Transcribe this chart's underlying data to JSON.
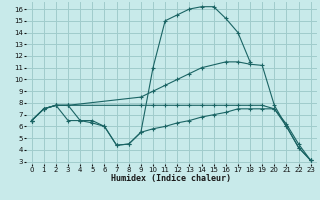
{
  "xlabel": "Humidex (Indice chaleur)",
  "xlim": [
    -0.5,
    23.5
  ],
  "ylim": [
    2.8,
    16.6
  ],
  "xticks": [
    0,
    1,
    2,
    3,
    4,
    5,
    6,
    7,
    8,
    9,
    10,
    11,
    12,
    13,
    14,
    15,
    16,
    17,
    18,
    19,
    20,
    21,
    22,
    23
  ],
  "yticks": [
    3,
    4,
    5,
    6,
    7,
    8,
    9,
    10,
    11,
    12,
    13,
    14,
    15,
    16
  ],
  "bg_color": "#c8eaea",
  "grid_color": "#a0cccc",
  "line_color": "#1a6464",
  "line1_x": [
    0,
    1,
    2,
    3,
    9,
    10,
    11,
    12,
    13,
    14,
    15,
    16,
    17,
    18,
    19,
    20,
    21,
    22,
    23
  ],
  "line1_y": [
    6.5,
    7.5,
    7.8,
    7.8,
    7.8,
    7.8,
    7.8,
    7.8,
    7.8,
    7.8,
    7.8,
    7.8,
    7.8,
    7.8,
    7.8,
    7.5,
    6.2,
    4.5,
    3.1
  ],
  "line2_x": [
    0,
    1,
    2,
    3,
    4,
    5,
    6,
    7,
    8,
    9,
    10,
    11,
    12,
    13,
    14,
    15,
    16,
    17,
    18
  ],
  "line2_y": [
    6.5,
    7.5,
    7.8,
    7.8,
    6.5,
    6.5,
    6.0,
    4.4,
    4.5,
    5.5,
    11.0,
    15.0,
    15.5,
    16.0,
    16.2,
    16.2,
    15.2,
    14.0,
    11.5
  ],
  "line3_x": [
    0,
    1,
    2,
    3,
    9,
    10,
    11,
    12,
    13,
    14,
    16,
    17,
    18,
    19,
    20,
    21,
    22,
    23
  ],
  "line3_y": [
    6.5,
    7.5,
    7.8,
    7.8,
    8.5,
    9.0,
    9.5,
    10.0,
    10.5,
    11.0,
    11.5,
    11.5,
    11.3,
    11.2,
    7.8,
    6.0,
    4.2,
    3.1
  ],
  "line4_x": [
    0,
    1,
    2,
    3,
    4,
    5,
    6,
    7,
    8,
    9,
    10,
    11,
    12,
    13,
    14,
    15,
    16,
    17,
    18,
    19,
    20,
    21,
    22,
    23
  ],
  "line4_y": [
    6.5,
    7.5,
    7.8,
    6.5,
    6.5,
    6.3,
    6.0,
    4.4,
    4.5,
    5.5,
    5.8,
    6.0,
    6.3,
    6.5,
    6.8,
    7.0,
    7.2,
    7.5,
    7.5,
    7.5,
    7.5,
    6.0,
    4.2,
    3.1
  ]
}
